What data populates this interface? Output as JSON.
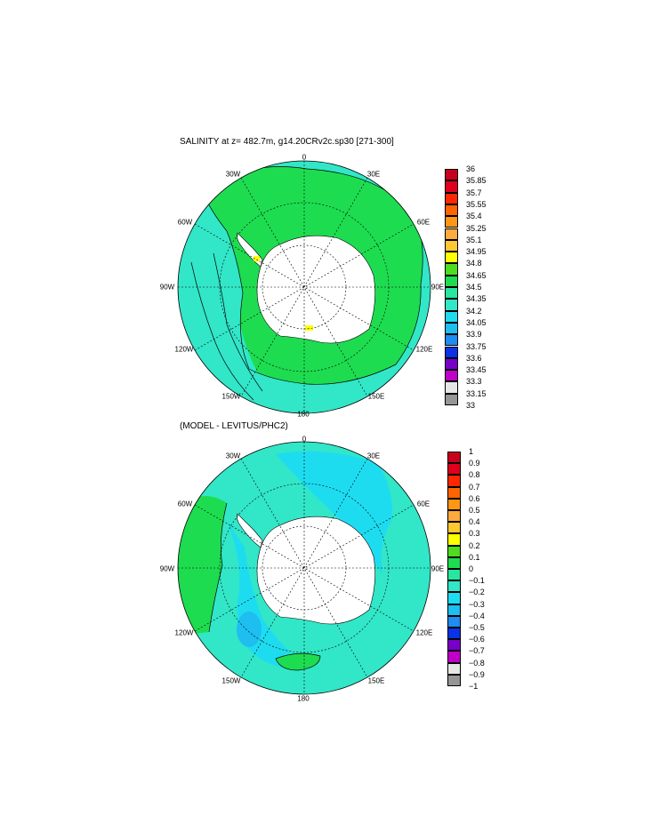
{
  "top_panel": {
    "title": "SALINITY at z= 482.7m, g14.20CRv2c.sp30 [271-300]",
    "lon_labels": [
      "0",
      "30E",
      "60E",
      "90E",
      "120E",
      "150E",
      "180",
      "150W",
      "120W",
      "90W",
      "60W",
      "30W"
    ],
    "colorbar": {
      "labels": [
        "36",
        "35.85",
        "35.7",
        "35.55",
        "35.4",
        "35.25",
        "35.1",
        "34.95",
        "34.8",
        "34.65",
        "34.5",
        "34.35",
        "34.2",
        "34.05",
        "33.9",
        "33.75",
        "33.6",
        "33.45",
        "33.3",
        "33.15",
        "33"
      ],
      "colors": [
        "#c8001e",
        "#e0001e",
        "#ff2800",
        "#ff6400",
        "#ff9614",
        "#ffaa3c",
        "#ffc832",
        "#ffff00",
        "#50dc1e",
        "#1edc50",
        "#28e6a0",
        "#32e6c8",
        "#1edcf0",
        "#1ebef0",
        "#1e8cf0",
        "#0a32e6",
        "#7800c8",
        "#be00c8",
        "#e6e6e6",
        "#969696"
      ]
    }
  },
  "bottom_panel": {
    "title": "(MODEL - LEVITUS/PHC2)",
    "lon_labels": [
      "0",
      "30E",
      "60E",
      "90E",
      "120E",
      "150E",
      "180",
      "150W",
      "120W",
      "90W",
      "60W",
      "30W"
    ],
    "colorbar": {
      "labels": [
        "1",
        "0.9",
        "0.8",
        "0.7",
        "0.6",
        "0.5",
        "0.4",
        "0.3",
        "0.2",
        "0.1",
        "0",
        "−0.1",
        "−0.2",
        "−0.3",
        "−0.4",
        "−0.5",
        "−0.6",
        "−0.7",
        "−0.8",
        "−0.9",
        "−1"
      ],
      "colors": [
        "#c8001e",
        "#e0001e",
        "#ff2800",
        "#ff6400",
        "#ff9614",
        "#ffaa3c",
        "#ffc832",
        "#ffff00",
        "#50dc1e",
        "#1edc50",
        "#28e6a0",
        "#32e6c8",
        "#1edcf0",
        "#1ebef0",
        "#1e8cf0",
        "#0a32e6",
        "#7800c8",
        "#be00c8",
        "#e6e6e6",
        "#969696"
      ]
    }
  }
}
